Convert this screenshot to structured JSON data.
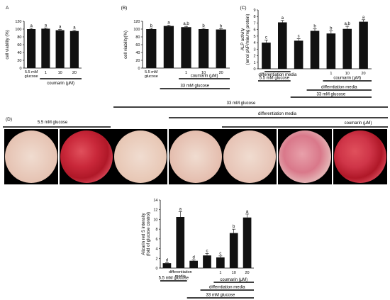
{
  "figure": {
    "panels": [
      "(A)",
      "(B)",
      "(C)",
      "(D)"
    ],
    "headers": {
      "glucose_5_5": "5.5 mM glucose",
      "glucose_33": "33 mM glucose",
      "diff_media": "differentiation media",
      "coumarin": "coumarin (μM)",
      "coumarin_doses": [
        "1",
        "10",
        "20"
      ]
    },
    "micrographs": [
      {
        "label": "5.5 mM glucose",
        "stain": "light",
        "color": "#e6c4b4"
      },
      {
        "label": "5.5 mM glucose + differentiation media",
        "stain": "heavy",
        "color": "#c9283a"
      },
      {
        "label": "33 mM glucose",
        "stain": "light",
        "color": "#e8c8b6"
      },
      {
        "label": "33 mM glucose + differentiation media",
        "stain": "light",
        "color": "#e5bfb0"
      },
      {
        "label": "coumarin 1 μM",
        "stain": "light",
        "color": "#e7c4b6"
      },
      {
        "label": "coumarin 10 μM",
        "stain": "moderate",
        "color": "#d9788a"
      },
      {
        "label": "coumarin 20 μM",
        "stain": "heavy",
        "color": "#cf3548"
      }
    ]
  },
  "chart_data": [
    {
      "id": "A",
      "type": "bar",
      "ylabel": "cell viability (%)",
      "ylim": [
        0,
        120
      ],
      "yticks": [
        0,
        20,
        40,
        60,
        80,
        100,
        120
      ],
      "categories": [
        "5.5 mM glucose",
        "1",
        "10",
        "20"
      ],
      "values": [
        100,
        101,
        97,
        95
      ],
      "errors": [
        2,
        2,
        2,
        2
      ],
      "sig_labels": [
        "a",
        "a",
        "a",
        "a"
      ],
      "bracket_label": "coumarin (μM)"
    },
    {
      "id": "B",
      "type": "bar",
      "ylabel": "cell viability(%)",
      "ylim": [
        0,
        120
      ],
      "yticks": [
        0,
        20,
        40,
        60,
        80,
        100,
        120
      ],
      "categories": [
        "5.5 mM glucose",
        "",
        "1",
        "10",
        "20"
      ],
      "values": [
        100,
        108,
        105,
        100,
        99
      ],
      "errors": [
        2,
        2,
        2,
        2,
        2
      ],
      "sig_labels": [
        "b",
        "a",
        "a,b",
        "b",
        "b"
      ],
      "bracket_labels": [
        "coumarin (μM)",
        "33 mM glucose"
      ]
    },
    {
      "id": "C",
      "type": "bar",
      "ylabel": "ALP activity\n(nmol pNP/min/mg protein)",
      "ylim": [
        0,
        9
      ],
      "yticks": [
        0,
        1,
        2,
        3,
        4,
        5,
        6,
        7,
        8,
        9
      ],
      "categories": [
        "",
        "",
        "",
        "",
        "1",
        "10",
        "20"
      ],
      "values": [
        4.0,
        7.1,
        4.3,
        5.8,
        5.4,
        6.1,
        7.2
      ],
      "errors": [
        0.4,
        0.3,
        0.3,
        0.3,
        0.4,
        0.4,
        0.3
      ],
      "sig_labels": [
        "c",
        "a",
        "c",
        "b",
        "b",
        "a,b",
        "a"
      ],
      "bracket_labels": [
        "differentiation media",
        "5.5 mM glucose",
        "coumarin (μM)",
        "differntiation media",
        "33 mM glucose"
      ]
    },
    {
      "id": "D",
      "type": "bar",
      "ylabel": "Alizarin red S intensity\n(fold of glucose control)",
      "ylim": [
        0,
        14
      ],
      "yticks": [
        0,
        2,
        4,
        6,
        8,
        10,
        12,
        14
      ],
      "categories": [
        "",
        "differentiation media",
        "",
        "",
        "1",
        "10",
        "20"
      ],
      "values": [
        1.0,
        10.5,
        1.5,
        2.6,
        2.2,
        7.2,
        10.4
      ],
      "errors": [
        0.1,
        1.1,
        0.2,
        0.4,
        0.3,
        0.8,
        0.7
      ],
      "sig_labels": [
        "d",
        "a",
        "d",
        "c",
        "c",
        "b",
        "a"
      ],
      "bracket_labels": [
        "5.5 mM glucose",
        "coumarin (μM)",
        "differntiation media",
        "33 mM glucose"
      ]
    }
  ]
}
